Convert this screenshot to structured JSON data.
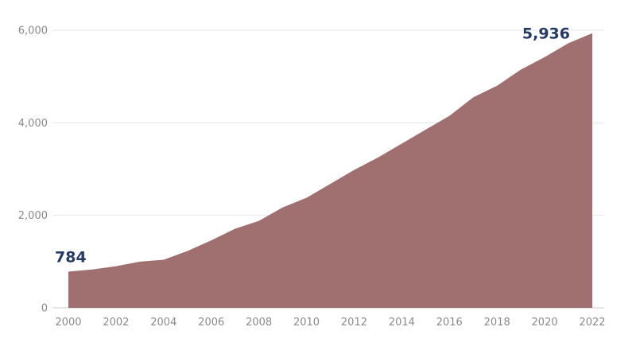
{
  "colors": {
    "area": "#a07070",
    "label": "#243a64",
    "grid": "#e6e6e6",
    "axis_text": "#8a8a8a"
  },
  "chart_data": {
    "type": "area",
    "title": "",
    "xlabel": "",
    "ylabel": "",
    "x": [
      2000,
      2001,
      2002,
      2003,
      2004,
      2005,
      2006,
      2007,
      2008,
      2009,
      2010,
      2011,
      2012,
      2013,
      2014,
      2015,
      2016,
      2017,
      2018,
      2019,
      2020,
      2021,
      2022
    ],
    "values": [
      784,
      830,
      900,
      1000,
      1040,
      1230,
      1460,
      1710,
      1880,
      2170,
      2380,
      2680,
      2980,
      3250,
      3550,
      3850,
      4150,
      4550,
      4800,
      5150,
      5420,
      5720,
      5936
    ],
    "xticks": [
      "2000",
      "2002",
      "2004",
      "2006",
      "2008",
      "2010",
      "2012",
      "2014",
      "2016",
      "2018",
      "2020",
      "2022"
    ],
    "yticks": [
      "0",
      "2,000",
      "4,000",
      "6,000"
    ],
    "ytick_values": [
      0,
      2000,
      4000,
      6000
    ],
    "xlim": [
      2000,
      2022
    ],
    "ylim": [
      0,
      6000
    ],
    "grid": true,
    "annotations": {
      "start_label": "784",
      "end_label": "5,936"
    }
  }
}
